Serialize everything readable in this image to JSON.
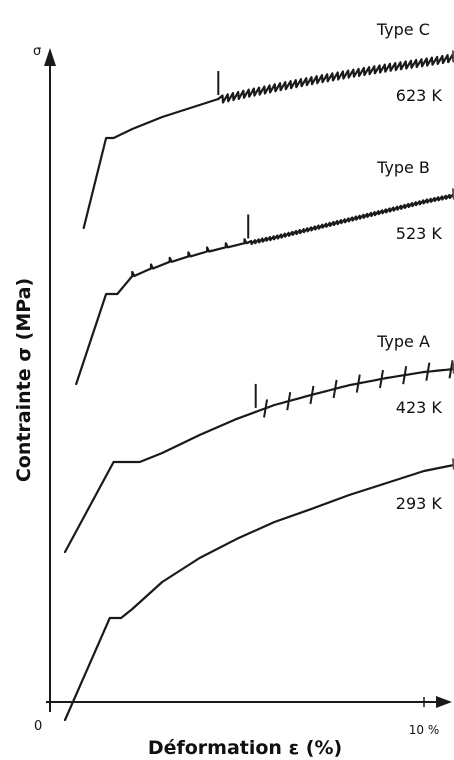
{
  "chart_data": {
    "type": "line",
    "title": "",
    "xlabel": "Déformation ε (%)",
    "ylabel": "Contrainte σ (MPa)",
    "y_axis_symbol": "σ",
    "origin_label": "0",
    "x_tick_labels": [
      {
        "x": 10,
        "label": "10 %"
      }
    ],
    "xlim": [
      0,
      11
    ],
    "ylim": [
      0,
      11
    ],
    "grid": false,
    "series": [
      {
        "name": "293 K",
        "type_label": "",
        "x": [
          0.4,
          1.6,
          1.9,
          2.2,
          3,
          4,
          5,
          6,
          7,
          8,
          9,
          10,
          10.8
        ],
        "y": [
          -0.3,
          1.4,
          1.4,
          1.55,
          2.0,
          2.4,
          2.72,
          3.0,
          3.22,
          3.45,
          3.65,
          3.85,
          3.95
        ],
        "serration_onset": null
      },
      {
        "name": "423 K",
        "type_label": "Type A",
        "x": [
          0.4,
          1.7,
          2.4,
          3,
          4,
          5,
          6,
          7,
          8,
          9,
          10,
          10.8
        ],
        "y": [
          2.5,
          4.0,
          4.0,
          4.15,
          4.45,
          4.72,
          4.95,
          5.12,
          5.28,
          5.4,
          5.5,
          5.55
        ],
        "serration_onset": 5.5
      },
      {
        "name": "523 K",
        "type_label": "Type B",
        "x": [
          0.7,
          1.5,
          1.8,
          2.2,
          3,
          4,
          5,
          6,
          7,
          8,
          9,
          10,
          10.8
        ],
        "y": [
          5.3,
          6.8,
          6.8,
          7.1,
          7.3,
          7.48,
          7.62,
          7.75,
          7.9,
          8.05,
          8.2,
          8.35,
          8.45
        ],
        "serration_onset": 5.3
      },
      {
        "name": "623 K",
        "type_label": "Type C",
        "x": [
          0.9,
          1.5,
          1.7,
          2.2,
          3,
          4,
          4.5,
          5,
          6,
          7,
          8,
          9,
          10,
          10.8
        ],
        "y": [
          7.9,
          9.4,
          9.4,
          9.55,
          9.75,
          9.95,
          10.05,
          10.12,
          10.25,
          10.37,
          10.48,
          10.58,
          10.67,
          10.75
        ],
        "serration_onset": 4.5
      }
    ]
  }
}
